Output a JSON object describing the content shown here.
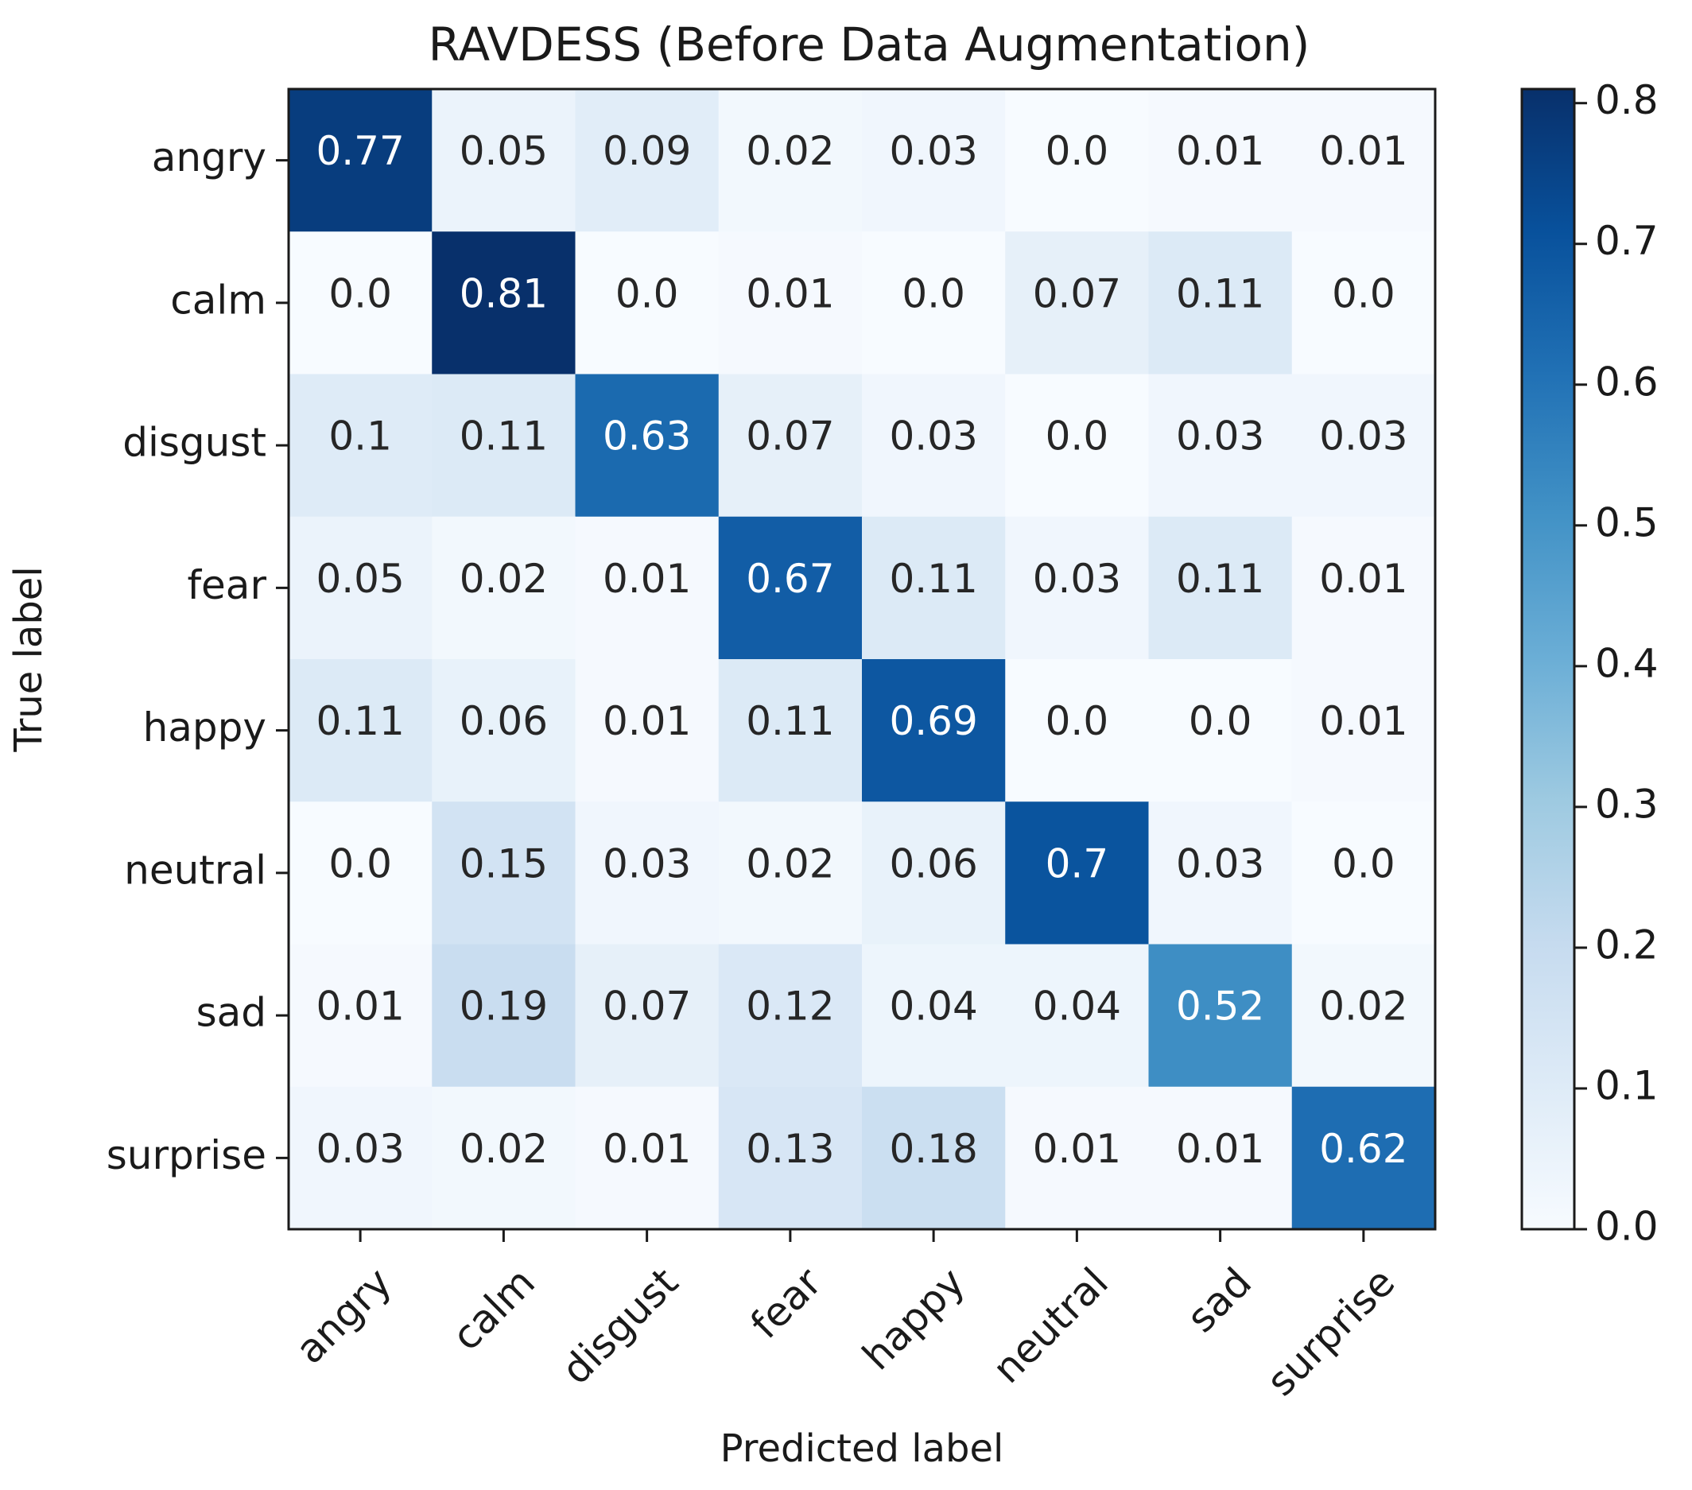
{
  "chart_data": {
    "type": "heatmap",
    "title": "RAVDESS (Before Data Augmentation)",
    "xlabel": "Predicted label",
    "ylabel": "True label",
    "categories_x": [
      "angry",
      "calm",
      "disgust",
      "fear",
      "happy",
      "neutral",
      "sad",
      "surprise"
    ],
    "categories_y": [
      "angry",
      "calm",
      "disgust",
      "fear",
      "happy",
      "neutral",
      "sad",
      "surprise"
    ],
    "cell_labels": [
      [
        "0.77",
        "0.05",
        "0.09",
        "0.02",
        "0.03",
        "0.0",
        "0.01",
        "0.01"
      ],
      [
        "0.0",
        "0.81",
        "0.0",
        "0.01",
        "0.0",
        "0.07",
        "0.11",
        "0.0"
      ],
      [
        "0.1",
        "0.11",
        "0.63",
        "0.07",
        "0.03",
        "0.0",
        "0.03",
        "0.03"
      ],
      [
        "0.05",
        "0.02",
        "0.01",
        "0.67",
        "0.11",
        "0.03",
        "0.11",
        "0.01"
      ],
      [
        "0.11",
        "0.06",
        "0.01",
        "0.11",
        "0.69",
        "0.0",
        "0.0",
        "0.01"
      ],
      [
        "0.0",
        "0.15",
        "0.03",
        "0.02",
        "0.06",
        "0.7",
        "0.03",
        "0.0"
      ],
      [
        "0.01",
        "0.19",
        "0.07",
        "0.12",
        "0.04",
        "0.04",
        "0.52",
        "0.02"
      ],
      [
        "0.03",
        "0.02",
        "0.01",
        "0.13",
        "0.18",
        "0.01",
        "0.01",
        "0.62"
      ]
    ],
    "values": [
      [
        0.77,
        0.05,
        0.09,
        0.02,
        0.03,
        0.0,
        0.01,
        0.01
      ],
      [
        0.0,
        0.81,
        0.0,
        0.01,
        0.0,
        0.07,
        0.11,
        0.0
      ],
      [
        0.1,
        0.11,
        0.63,
        0.07,
        0.03,
        0.0,
        0.03,
        0.03
      ],
      [
        0.05,
        0.02,
        0.01,
        0.67,
        0.11,
        0.03,
        0.11,
        0.01
      ],
      [
        0.11,
        0.06,
        0.01,
        0.11,
        0.69,
        0.0,
        0.0,
        0.01
      ],
      [
        0.0,
        0.15,
        0.03,
        0.02,
        0.06,
        0.7,
        0.03,
        0.0
      ],
      [
        0.01,
        0.19,
        0.07,
        0.12,
        0.04,
        0.04,
        0.52,
        0.02
      ],
      [
        0.03,
        0.02,
        0.01,
        0.13,
        0.18,
        0.01,
        0.01,
        0.62
      ]
    ],
    "colorbar": {
      "range": [
        0,
        0.81
      ],
      "ticks": [
        0.0,
        0.1,
        0.2,
        0.3,
        0.4,
        0.5,
        0.6,
        0.7,
        0.8
      ],
      "tick_labels": [
        "0.0",
        "0.1",
        "0.2",
        "0.3",
        "0.4",
        "0.5",
        "0.6",
        "0.7",
        "0.8"
      ],
      "colormap": "Blues",
      "colors": [
        "#f7fbff",
        "#deebf7",
        "#c6dbef",
        "#9ecae1",
        "#6baed6",
        "#4292c6",
        "#2171b5",
        "#08519c",
        "#08306b"
      ]
    },
    "text_colors": {
      "dark": "#262626",
      "light": "#ffffff"
    },
    "grid": false
  }
}
